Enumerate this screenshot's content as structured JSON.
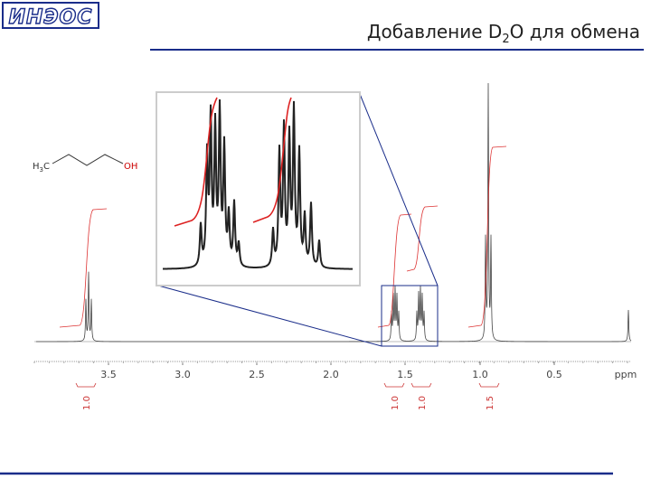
{
  "header": {
    "logo": "ИНЭОС",
    "title": [
      "Добавление D",
      "2",
      "O для обмена"
    ]
  },
  "molecule": {
    "left": [
      "H",
      "3",
      "C"
    ],
    "right": "OH"
  },
  "spectrum": {
    "axis_labels": [
      "3.5",
      "3.0",
      "2.5",
      "2.0",
      "1.5",
      "1.0",
      "0.5",
      "ppm"
    ],
    "integrals": [
      "1.0",
      "1.0",
      "1.0",
      "1.5"
    ]
  }
}
